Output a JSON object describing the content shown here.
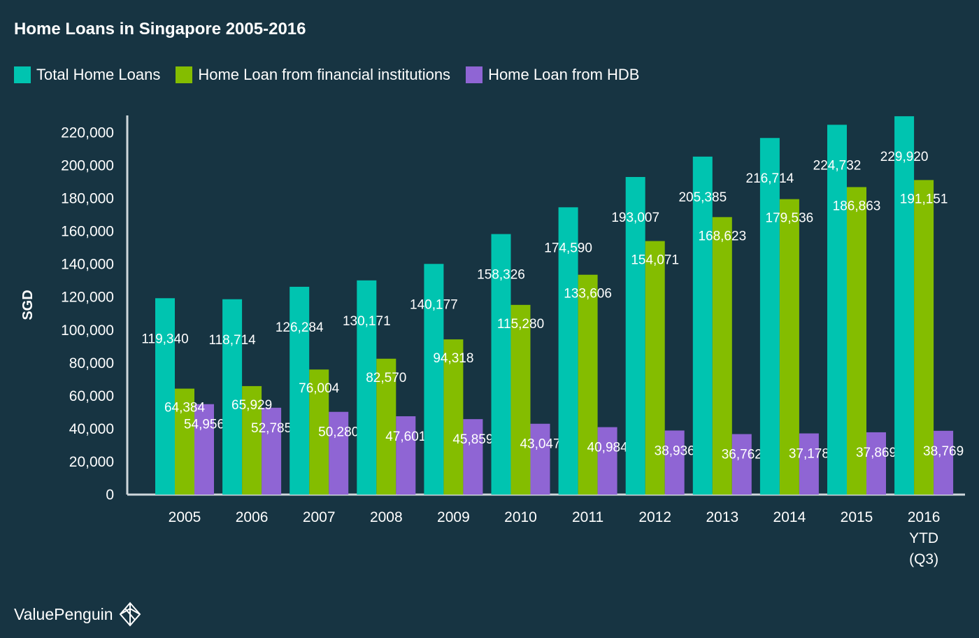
{
  "title": "Home Loans in Singapore 2005-2016",
  "brand": "ValuePenguin",
  "colors": {
    "background": "#173442",
    "total": "#00c4b0",
    "financial": "#84bd00",
    "hdb": "#8f65d4",
    "text": "#ffffff"
  },
  "chart_data": {
    "type": "bar",
    "title": "Home Loans in Singapore 2005-2016",
    "xlabel": "",
    "ylabel": "SGD",
    "ylim": [
      0,
      230000
    ],
    "yticks": [
      0,
      20000,
      40000,
      60000,
      80000,
      100000,
      120000,
      140000,
      160000,
      180000,
      200000,
      220000
    ],
    "ytick_labels": [
      "0",
      "20,000",
      "40,000",
      "60,000",
      "80,000",
      "100,000",
      "120,000",
      "140,000",
      "160,000",
      "180,000",
      "200,000",
      "220,000"
    ],
    "grid": false,
    "legend": "top-left",
    "categories": [
      "2005",
      "2006",
      "2007",
      "2008",
      "2009",
      "2010",
      "2011",
      "2012",
      "2013",
      "2014",
      "2015",
      "2016\nYTD\n(Q3)"
    ],
    "series": [
      {
        "name": "Total Home Loans",
        "color": "#00c4b0",
        "values": [
          119340,
          118714,
          126284,
          130171,
          140177,
          158326,
          174590,
          193007,
          205385,
          216714,
          224732,
          229920
        ],
        "labels": [
          "119,340",
          "118,714",
          "126,284",
          "130,171",
          "140,177",
          "158,326",
          "174,590",
          "193,007",
          "205,385",
          "216,714",
          "224,732",
          "229,920"
        ]
      },
      {
        "name": "Home Loan from financial institutions",
        "color": "#84bd00",
        "values": [
          64384,
          65929,
          76004,
          82570,
          94318,
          115280,
          133606,
          154071,
          168623,
          179536,
          186863,
          191151
        ],
        "labels": [
          "64,384",
          "65,929",
          "76,004",
          "82,570",
          "94,318",
          "115,280",
          "133,606",
          "154,071",
          "168,623",
          "179,536",
          "186,863",
          "191,151"
        ]
      },
      {
        "name": "Home Loan from HDB",
        "color": "#8f65d4",
        "values": [
          54956,
          52785,
          50280,
          47601,
          45859,
          43047,
          40984,
          38936,
          36762,
          37178,
          37869,
          38769
        ],
        "labels": [
          "54,956",
          "52,785",
          "50,280",
          "47,601",
          "45,859",
          "43,047",
          "40,984",
          "38,936",
          "36,762",
          "37,178",
          "37,869",
          "38,769"
        ]
      }
    ]
  }
}
